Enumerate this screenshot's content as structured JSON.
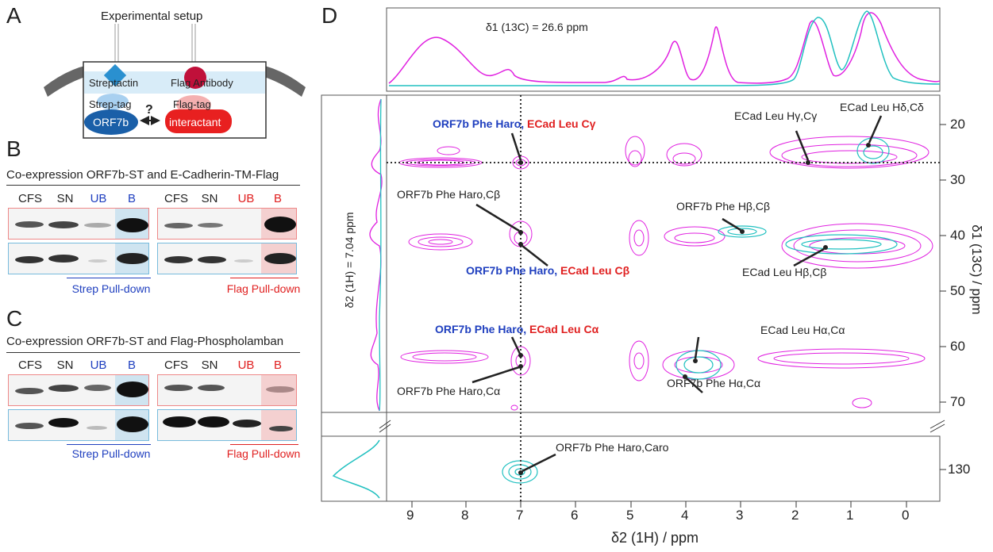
{
  "panels": {
    "a": "A",
    "b": "B",
    "c": "C",
    "d": "D"
  },
  "panel_a": {
    "title": "Experimental setup",
    "streptactin": "Streptactin",
    "flag_antibody": "Flag Antibody",
    "strep_tag": "Strep-tag",
    "flag_tag": "Flag-tag",
    "orf7b": "ORF7b",
    "interactant": "interactant",
    "question": "?"
  },
  "panel_b": {
    "title": "Co-expression ORF7b-ST and E-Cadherin-TM-Flag",
    "lanes_left": [
      "CFS",
      "SN",
      "UB",
      "B"
    ],
    "lanes_right": [
      "CFS",
      "SN",
      "UB",
      "B"
    ],
    "pulldown_left": "Strep Pull-down",
    "pulldown_right": "Flag Pull-down"
  },
  "panel_c": {
    "title": "Co-expression ORF7b-ST and Flag-Phospholamban",
    "lanes_left": [
      "CFS",
      "SN",
      "UB",
      "B"
    ],
    "lanes_right": [
      "CFS",
      "SN",
      "UB",
      "B"
    ],
    "pulldown_left": "Strep Pull-down",
    "pulldown_right": "Flag Pull-down"
  },
  "colors": {
    "blue": "#1f3fbf",
    "red": "#e02020",
    "magenta": "#e020e0",
    "teal": "#20c0c0",
    "strep_fill": "#2a7fc0",
    "flag_fill": "#e02020"
  },
  "panel_d": {
    "top_label": "δ1 (13C) = 26.6 ppm",
    "left_label": "δ2 (1H) =  7.04 ppm",
    "xlabel": "δ2 (1H) / ppm",
    "ylabel": "δ1 (13C) / ppm",
    "x_ticks": [
      "9",
      "8",
      "7",
      "6",
      "5",
      "4",
      "3",
      "2",
      "1",
      "0"
    ],
    "y_ticks_upper": [
      "20",
      "30",
      "40",
      "50",
      "60",
      "70"
    ],
    "y_ticks_lower": [
      "130"
    ],
    "annotations": {
      "a1_blue": "ORF7b Phe Haro,",
      "a1_red": " ECad Leu Cγ",
      "a2": "ORF7b Phe Haro,Cβ",
      "a3_blue": "ORF7b Phe Haro,",
      "a3_red": " ECad Leu Cβ",
      "a4_blue": "ORF7b Phe Haro,",
      "a4_red": " ECad Leu Cα",
      "a5": "ORF7b Phe Haro,Cα",
      "a6": "ECad Leu Hγ,Cγ",
      "a7": "ECad Leu Hδ,Cδ",
      "a8": "ORF7b Phe Hβ,Cβ",
      "a9": "ECad Leu Hβ,Cβ",
      "a10": "ECad Leu Hα,Cα",
      "a11": "ORF7b Phe Hα,Cα",
      "a12": "ORF7b Phe Haro,Caro"
    }
  }
}
